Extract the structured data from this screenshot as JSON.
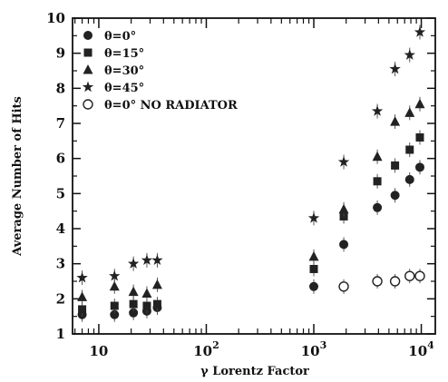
{
  "chart_data": {
    "type": "scatter",
    "xscale": "log",
    "xlim": [
      5.7,
      13500
    ],
    "ylim": [
      1,
      10
    ],
    "xlabel": "γ Lorentz Factor",
    "ylabel": "Average Number of Hits",
    "x_tick_labels": [
      {
        "value": 10,
        "base": "10",
        "exp": ""
      },
      {
        "value": 100,
        "base": "10",
        "exp": "2"
      },
      {
        "value": 1000,
        "base": "10",
        "exp": "3"
      },
      {
        "value": 10000,
        "base": "10",
        "exp": "4"
      }
    ],
    "y_ticks": [
      1,
      2,
      3,
      4,
      5,
      6,
      7,
      8,
      9,
      10
    ],
    "grid": false,
    "legend_position": "top-left",
    "series": [
      {
        "name": "θ=0°",
        "marker": "circle",
        "points": [
          [
            7,
            1.55
          ],
          [
            14,
            1.55
          ],
          [
            21,
            1.6
          ],
          [
            28,
            1.65
          ],
          [
            35,
            1.75
          ],
          [
            1000,
            2.35
          ],
          [
            1900,
            3.55
          ],
          [
            3900,
            4.6
          ],
          [
            5700,
            4.95
          ],
          [
            7800,
            5.4
          ],
          [
            9700,
            5.75
          ]
        ]
      },
      {
        "name": "θ=15°",
        "marker": "square",
        "points": [
          [
            7,
            1.7
          ],
          [
            14,
            1.8
          ],
          [
            21,
            1.85
          ],
          [
            28,
            1.8
          ],
          [
            35,
            1.85
          ],
          [
            1000,
            2.85
          ],
          [
            1900,
            4.35
          ],
          [
            3900,
            5.35
          ],
          [
            5700,
            5.8
          ],
          [
            7800,
            6.25
          ],
          [
            9700,
            6.6
          ]
        ]
      },
      {
        "name": "θ=30°",
        "marker": "triangle",
        "points": [
          [
            7,
            2.05
          ],
          [
            14,
            2.35
          ],
          [
            21,
            2.2
          ],
          [
            28,
            2.15
          ],
          [
            35,
            2.4
          ],
          [
            1000,
            3.2
          ],
          [
            1900,
            4.55
          ],
          [
            3900,
            6.05
          ],
          [
            5700,
            7.05
          ],
          [
            7800,
            7.3
          ],
          [
            9700,
            7.55
          ]
        ]
      },
      {
        "name": "θ=45°",
        "marker": "star",
        "points": [
          [
            7,
            2.6
          ],
          [
            14,
            2.65
          ],
          [
            21,
            3.0
          ],
          [
            28,
            3.1
          ],
          [
            35,
            3.1
          ],
          [
            1000,
            4.3
          ],
          [
            1900,
            5.9
          ],
          [
            3900,
            7.35
          ],
          [
            5700,
            8.55
          ],
          [
            7800,
            8.95
          ],
          [
            9700,
            9.6
          ]
        ]
      },
      {
        "name": "θ=0° NO RADIATOR",
        "marker": "open-circle",
        "points": [
          [
            1900,
            2.35
          ],
          [
            3900,
            2.5
          ],
          [
            5700,
            2.5
          ],
          [
            7800,
            2.65
          ],
          [
            9700,
            2.65
          ]
        ]
      }
    ]
  }
}
